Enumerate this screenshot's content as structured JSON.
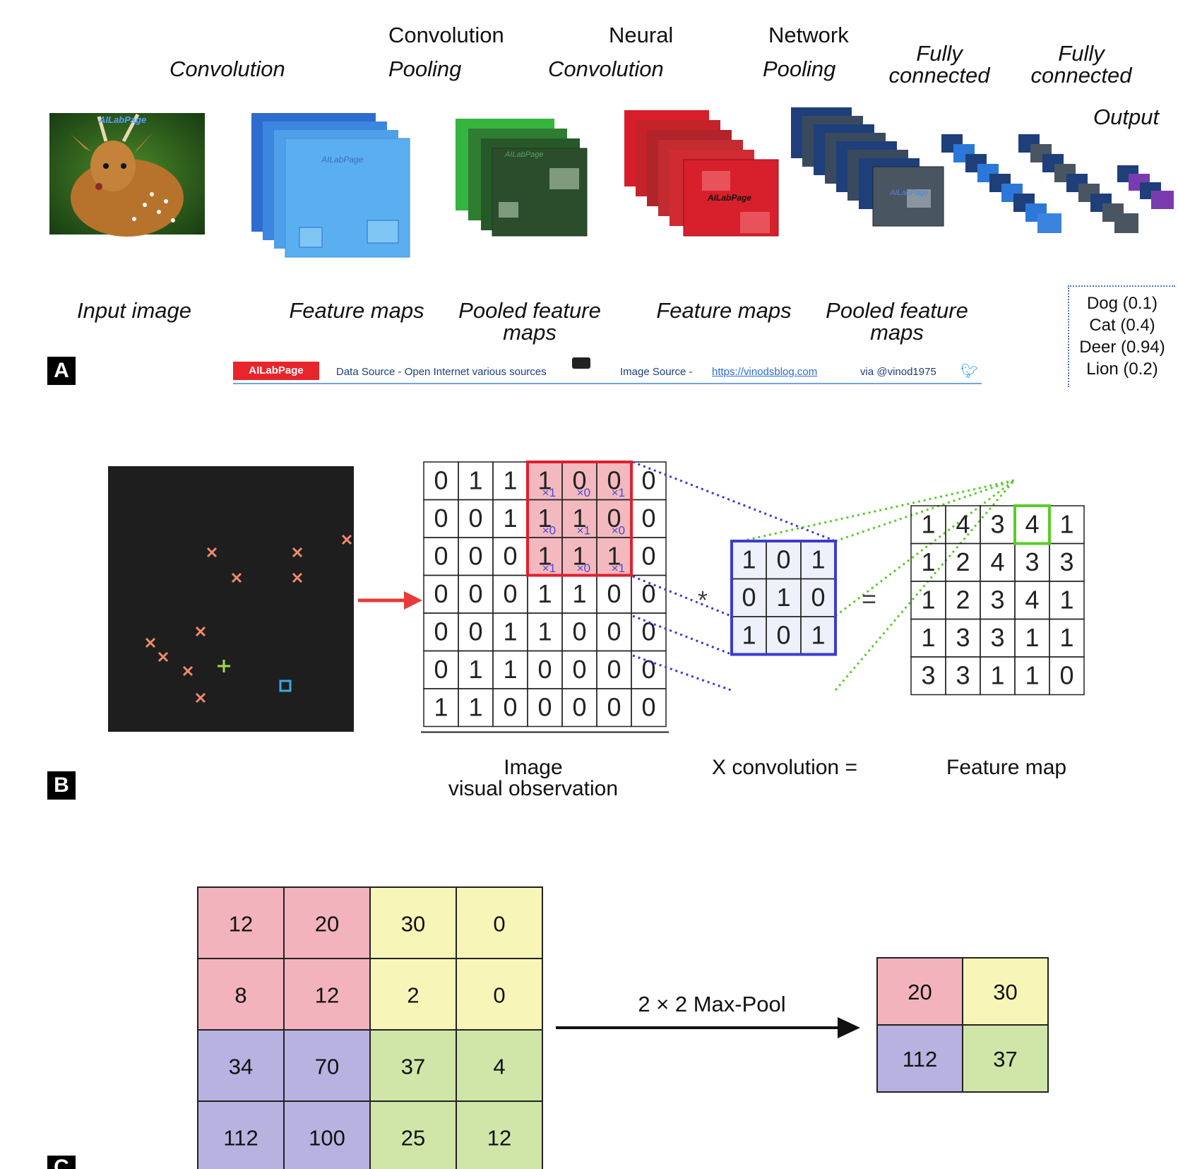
{
  "panel_a": {
    "tag": "A",
    "top_words": {
      "convolution_1": "Convolution",
      "convolution_2": "Convolution",
      "neural": "Neural",
      "network": "Network"
    },
    "stages": {
      "convolution_a": "Convolution",
      "pooling_a": "Pooling",
      "convolution_b": "Convolution",
      "pooling_b": "Pooling",
      "fully_connected_1": "Fully connected",
      "fully_connected_2": "Fully connected",
      "output": "Output"
    },
    "watermark": "AILabPage",
    "bottom_labels": {
      "input": "Input image",
      "feature_maps_1": "Feature maps",
      "pooled_1": "Pooled feature maps",
      "feature_maps_2": "Feature maps",
      "pooled_2": "Pooled feature maps"
    },
    "outputs": [
      "Dog (0.1)",
      "Cat (0.4)",
      "Deer (0.94)",
      "Lion (0.2)"
    ],
    "credits": {
      "brand": "AILabPage",
      "data_source": "Data Source -  Open Internet  various sources",
      "image_source": "Image Source -",
      "link": "https://vinodsblog.com",
      "via": "via   @vinod1975"
    },
    "colors": {
      "conv1": "#5aa9ea",
      "pool1": "#2b5a2e",
      "conv2": "#d81e2a",
      "pool2": "#1f3a6e",
      "output": "#7b3bb0"
    }
  },
  "panel_b": {
    "tag": "B",
    "image_grid": [
      [
        0,
        1,
        1,
        1,
        0,
        0,
        0
      ],
      [
        0,
        0,
        1,
        1,
        1,
        0,
        0
      ],
      [
        0,
        0,
        0,
        1,
        1,
        1,
        0
      ],
      [
        0,
        0,
        0,
        1,
        1,
        0,
        0
      ],
      [
        0,
        0,
        1,
        1,
        0,
        0,
        0
      ],
      [
        0,
        1,
        1,
        0,
        0,
        0,
        0
      ],
      [
        1,
        1,
        0,
        0,
        0,
        0,
        0
      ]
    ],
    "kernel_marks": [
      "×1",
      "×0",
      "×1",
      "×0",
      "×1",
      "×0",
      "×1",
      "×0",
      "×1"
    ],
    "kernel": [
      [
        1,
        0,
        1
      ],
      [
        0,
        1,
        0
      ],
      [
        1,
        0,
        1
      ]
    ],
    "feature_map": [
      [
        1,
        4,
        3,
        4,
        1
      ],
      [
        1,
        2,
        4,
        3,
        3
      ],
      [
        1,
        2,
        3,
        4,
        1
      ],
      [
        1,
        3,
        3,
        1,
        1
      ],
      [
        3,
        3,
        1,
        1,
        0
      ]
    ],
    "operators": {
      "star": "*",
      "equals": "="
    },
    "labels": {
      "image_line1": "Image",
      "image_line2": "visual observation",
      "convolution": "X convolution =",
      "feature_map": "Feature map"
    }
  },
  "panel_c": {
    "tag": "C",
    "input": [
      [
        12,
        20,
        30,
        0
      ],
      [
        8,
        12,
        2,
        0
      ],
      [
        34,
        70,
        37,
        4
      ],
      [
        112,
        100,
        25,
        12
      ]
    ],
    "operation": "2 × 2 Max-Pool",
    "output": [
      [
        20,
        30
      ],
      [
        112,
        37
      ]
    ],
    "colors": {
      "q1": "#f2b3bd",
      "q2": "#f8f5b8",
      "q3": "#b7b2e0",
      "q4": "#cfe6a8"
    }
  }
}
